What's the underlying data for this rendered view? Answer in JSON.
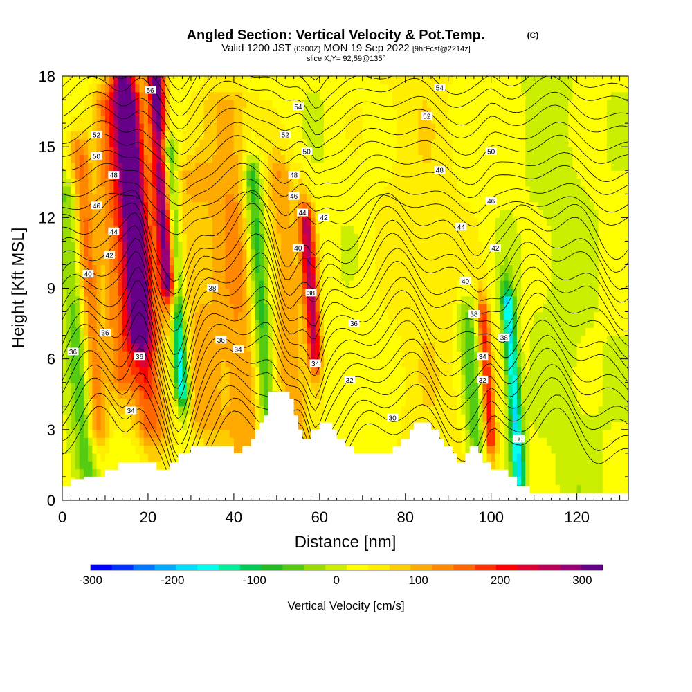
{
  "chart_data": {
    "type": "heatmap",
    "title": "Angled Section: Vertical Velocity & Pot.Temp.",
    "title_unit": "(C)",
    "subtitle_prefix": "Valid 1200 JST",
    "subtitle_utc": "(0300Z)",
    "subtitle_date": "MON 19 Sep 2022",
    "subtitle_fcst": "[9hrFcst@2214z]",
    "slice_info": "slice X,Y= 92,59@135°",
    "xlabel": "Distance [nm]",
    "ylabel": "Height [Kft MSL]",
    "xlim": [
      0,
      132
    ],
    "ylim": [
      0,
      18
    ],
    "x_ticks": [
      0,
      20,
      40,
      60,
      80,
      100,
      120
    ],
    "y_ticks": [
      0,
      3,
      6,
      9,
      12,
      15,
      18
    ],
    "colorbar": {
      "label": "Vertical Velocity [cm/s]",
      "range": [
        -300,
        325
      ],
      "ticks": [
        -300,
        -200,
        -100,
        0,
        100,
        200,
        300
      ],
      "colors": [
        "#0000ff",
        "#0033ff",
        "#0077ff",
        "#00aaff",
        "#00ddff",
        "#00ffee",
        "#00ee99",
        "#00cc55",
        "#22bb22",
        "#55cc11",
        "#99dd00",
        "#ccee00",
        "#ffff00",
        "#ffee00",
        "#ffcc00",
        "#ffaa00",
        "#ff8800",
        "#ff6600",
        "#ff3300",
        "#ff0000",
        "#dd0033",
        "#bb0055",
        "#990077",
        "#660088"
      ]
    },
    "velocity_features": [
      {
        "x": 6,
        "ztop": 13,
        "zbot": 1,
        "amp": -90,
        "w": 2.0
      },
      {
        "x": 8,
        "ztop": 15,
        "zbot": 3,
        "amp": 140,
        "w": 1.8
      },
      {
        "x": 14,
        "ztop": 17,
        "zbot": 5,
        "amp": 110,
        "w": 2.5
      },
      {
        "x": 18,
        "ztop": 18,
        "zbot": 7,
        "amp": 260,
        "w": 2.0
      },
      {
        "x": 21,
        "ztop": 17,
        "zbot": 3,
        "amp": 140,
        "w": 2.5
      },
      {
        "x": 25,
        "ztop": 18,
        "zbot": 9,
        "amp": 330,
        "w": 1.4
      },
      {
        "x": 28,
        "ztop": 15,
        "zbot": 4.5,
        "amp": -230,
        "w": 1.3
      },
      {
        "x": 33,
        "ztop": 14,
        "zbot": 3,
        "amp": 70,
        "w": 5.0
      },
      {
        "x": 44,
        "ztop": 17,
        "zbot": 2,
        "amp": 90,
        "w": 4.0
      },
      {
        "x": 48,
        "ztop": 14,
        "zbot": 3,
        "amp": -140,
        "w": 1.6
      },
      {
        "x": 59,
        "ztop": 12,
        "zbot": 6,
        "amp": 230,
        "w": 1.2
      },
      {
        "x": 55,
        "ztop": 14,
        "zbot": 2,
        "amp": 90,
        "w": 2.5
      },
      {
        "x": 97,
        "ztop": 8,
        "zbot": 0.5,
        "amp": -90,
        "w": 1.5
      },
      {
        "x": 100,
        "ztop": 8,
        "zbot": 2.5,
        "amp": 170,
        "w": 1.0
      },
      {
        "x": 106.5,
        "ztop": 8.5,
        "zbot": 1,
        "amp": -200,
        "w": 1.1
      },
      {
        "x": 88,
        "ztop": 18,
        "zbot": 0.5,
        "amp": 35,
        "w": 8.0
      },
      {
        "x": 120,
        "ztop": 18,
        "zbot": 0.5,
        "amp": -20,
        "w": 5.0
      }
    ],
    "theta_levels": [
      30,
      32,
      34,
      36,
      38,
      40,
      42,
      44,
      46,
      48,
      50,
      52,
      54,
      56
    ],
    "theta_labels": [
      {
        "text": "56",
        "x": 20.5,
        "y": 17.4
      },
      {
        "text": "54",
        "x": 55,
        "y": 16.7
      },
      {
        "text": "54",
        "x": 88,
        "y": 17.5
      },
      {
        "text": "52",
        "x": 8,
        "y": 15.5
      },
      {
        "text": "52",
        "x": 52,
        "y": 15.5
      },
      {
        "text": "52",
        "x": 85,
        "y": 16.3
      },
      {
        "text": "50",
        "x": 8,
        "y": 14.6
      },
      {
        "text": "50",
        "x": 57,
        "y": 14.8
      },
      {
        "text": "50",
        "x": 100,
        "y": 14.8
      },
      {
        "text": "48",
        "x": 12,
        "y": 13.8
      },
      {
        "text": "48",
        "x": 54,
        "y": 13.8
      },
      {
        "text": "48",
        "x": 88,
        "y": 14
      },
      {
        "text": "46",
        "x": 8,
        "y": 12.5
      },
      {
        "text": "46",
        "x": 54,
        "y": 12.9
      },
      {
        "text": "46",
        "x": 100,
        "y": 12.7
      },
      {
        "text": "44",
        "x": 12,
        "y": 11.4
      },
      {
        "text": "44",
        "x": 56,
        "y": 12.2
      },
      {
        "text": "44",
        "x": 93,
        "y": 11.6
      },
      {
        "text": "42",
        "x": 11,
        "y": 10.4
      },
      {
        "text": "42",
        "x": 61,
        "y": 12
      },
      {
        "text": "42",
        "x": 101,
        "y": 10.7
      },
      {
        "text": "40",
        "x": 6,
        "y": 9.6
      },
      {
        "text": "40",
        "x": 55,
        "y": 10.7
      },
      {
        "text": "40",
        "x": 94,
        "y": 9.3
      },
      {
        "text": "38",
        "x": 35,
        "y": 9
      },
      {
        "text": "38",
        "x": 58,
        "y": 8.8
      },
      {
        "text": "38",
        "x": 96,
        "y": 7.9
      },
      {
        "text": "38",
        "x": 103,
        "y": 6.9
      },
      {
        "text": "36",
        "x": 10,
        "y": 7.1
      },
      {
        "text": "36",
        "x": 68,
        "y": 7.5
      },
      {
        "text": "36",
        "x": 2.5,
        "y": 6.3
      },
      {
        "text": "36",
        "x": 18,
        "y": 6.1
      },
      {
        "text": "36",
        "x": 37,
        "y": 6.8
      },
      {
        "text": "34",
        "x": 41,
        "y": 6.4
      },
      {
        "text": "34",
        "x": 59,
        "y": 5.8
      },
      {
        "text": "34",
        "x": 98,
        "y": 6.1
      },
      {
        "text": "34",
        "x": 16,
        "y": 3.8
      },
      {
        "text": "32",
        "x": 67,
        "y": 5.1
      },
      {
        "text": "32",
        "x": 98,
        "y": 5.1
      },
      {
        "text": "30",
        "x": 77,
        "y": 3.5
      },
      {
        "text": "30",
        "x": 106.5,
        "y": 2.6
      }
    ],
    "terrain_kft": [
      0.6,
      0.6,
      0.9,
      0.9,
      0.9,
      1.0,
      1.0,
      1.0,
      1.0,
      1.0,
      1.3,
      1.3,
      1.3,
      1.6,
      1.6,
      1.6,
      1.6,
      1.6,
      1.6,
      1.6,
      1.6,
      1.6,
      1.3,
      1.3,
      1.3,
      1.6,
      1.6,
      2.0,
      2.0,
      2.0,
      2.3,
      2.3,
      2.3,
      2.3,
      2.3,
      2.3,
      2.3,
      2.3,
      2.3,
      2.3,
      2.0,
      2.0,
      2.3,
      2.3,
      2.6,
      3.0,
      3.3,
      3.6,
      4.6,
      4.6,
      4.6,
      4.6,
      4.6,
      4.3,
      3.6,
      3.0,
      2.6,
      2.6,
      3.0,
      3.0,
      3.3,
      3.3,
      3.3,
      3.0,
      2.6,
      2.6,
      2.3,
      2.3,
      2.0,
      2.0,
      2.0,
      2.0,
      2.0,
      2.0,
      2.0,
      2.0,
      2.0,
      2.3,
      2.3,
      2.6,
      2.6,
      3.0,
      3.3,
      3.3,
      3.3,
      3.3,
      3.0,
      3.0,
      2.6,
      2.3,
      2.3,
      2.0,
      1.6,
      1.6,
      2.0,
      2.3,
      2.3,
      2.0,
      1.6,
      1.6,
      1.3,
      1.3,
      1.3,
      1.3,
      1.0,
      1.0,
      0.6,
      0.6,
      0.6,
      0.3,
      0.3,
      0.3,
      0.3,
      0.3,
      0.3,
      0.3,
      0.3,
      0.3,
      0.3,
      0.3,
      0.3,
      0.3,
      0.3,
      0.3,
      0.3,
      0.3,
      0.3,
      0.3,
      0.3,
      0.3,
      0.3,
      0.3,
      0.3,
      0.3,
      0.3,
      0.3
    ]
  }
}
